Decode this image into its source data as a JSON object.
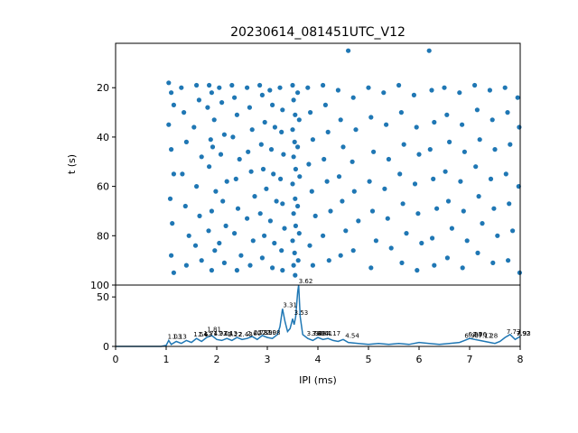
{
  "chart_data": [
    {
      "type": "scatter",
      "title": "20230614_081451UTC_V12",
      "ylabel": "t (s)",
      "xlim": [
        0,
        8
      ],
      "ylim": [
        100,
        2
      ],
      "y_inverted": true,
      "yticks": [
        20,
        40,
        60,
        80,
        100
      ],
      "marker_color": "#1f77b4",
      "note_points": "approximate sample of the dense raster",
      "points": [
        [
          1.05,
          18
        ],
        [
          1.1,
          22
        ],
        [
          1.15,
          27
        ],
        [
          1.05,
          35
        ],
        [
          1.1,
          45
        ],
        [
          1.15,
          55
        ],
        [
          1.08,
          65
        ],
        [
          1.12,
          75
        ],
        [
          1.1,
          88
        ],
        [
          1.15,
          95
        ],
        [
          1.3,
          20
        ],
        [
          1.35,
          30
        ],
        [
          1.4,
          42
        ],
        [
          1.32,
          55
        ],
        [
          1.38,
          68
        ],
        [
          1.45,
          80
        ],
        [
          1.4,
          92
        ],
        [
          1.6,
          19
        ],
        [
          1.65,
          25
        ],
        [
          1.55,
          36
        ],
        [
          1.7,
          48
        ],
        [
          1.6,
          60
        ],
        [
          1.66,
          72
        ],
        [
          1.58,
          84
        ],
        [
          1.7,
          90
        ],
        [
          1.85,
          19
        ],
        [
          1.9,
          22
        ],
        [
          1.82,
          28
        ],
        [
          1.95,
          33
        ],
        [
          1.88,
          41
        ],
        [
          1.92,
          44
        ],
        [
          1.85,
          52
        ],
        [
          1.98,
          62
        ],
        [
          1.9,
          70
        ],
        [
          1.84,
          78
        ],
        [
          1.96,
          86
        ],
        [
          1.9,
          94
        ],
        [
          2.05,
          20
        ],
        [
          2.1,
          26
        ],
        [
          2.15,
          39
        ],
        [
          2.08,
          47
        ],
        [
          2.2,
          58
        ],
        [
          2.12,
          66
        ],
        [
          2.18,
          76
        ],
        [
          2.05,
          83
        ],
        [
          2.15,
          91
        ],
        [
          2.3,
          19
        ],
        [
          2.35,
          24
        ],
        [
          2.4,
          31
        ],
        [
          2.32,
          40
        ],
        [
          2.45,
          49
        ],
        [
          2.38,
          57
        ],
        [
          2.42,
          69
        ],
        [
          2.35,
          79
        ],
        [
          2.48,
          88
        ],
        [
          2.4,
          94
        ],
        [
          2.6,
          20
        ],
        [
          2.65,
          28
        ],
        [
          2.7,
          37
        ],
        [
          2.62,
          46
        ],
        [
          2.68,
          54
        ],
        [
          2.75,
          64
        ],
        [
          2.6,
          73
        ],
        [
          2.72,
          82
        ],
        [
          2.66,
          92
        ],
        [
          2.85,
          19
        ],
        [
          2.9,
          23
        ],
        [
          2.95,
          34
        ],
        [
          2.88,
          43
        ],
        [
          2.92,
          53
        ],
        [
          2.98,
          61
        ],
        [
          2.86,
          71
        ],
        [
          2.94,
          80
        ],
        [
          2.9,
          89
        ],
        [
          3.05,
          21
        ],
        [
          3.1,
          27
        ],
        [
          3.15,
          36
        ],
        [
          3.08,
          45
        ],
        [
          3.12,
          55
        ],
        [
          3.18,
          66
        ],
        [
          3.06,
          74
        ],
        [
          3.14,
          83
        ],
        [
          3.1,
          93
        ],
        [
          3.25,
          20
        ],
        [
          3.3,
          29
        ],
        [
          3.28,
          38
        ],
        [
          3.32,
          47
        ],
        [
          3.26,
          57
        ],
        [
          3.3,
          67
        ],
        [
          3.34,
          77
        ],
        [
          3.28,
          86
        ],
        [
          3.3,
          94
        ],
        [
          3.5,
          19
        ],
        [
          3.52,
          25
        ],
        [
          3.55,
          31
        ],
        [
          3.5,
          37
        ],
        [
          3.54,
          42
        ],
        [
          3.52,
          48
        ],
        [
          3.56,
          53
        ],
        [
          3.5,
          59
        ],
        [
          3.55,
          65
        ],
        [
          3.52,
          71
        ],
        [
          3.56,
          76
        ],
        [
          3.5,
          82
        ],
        [
          3.54,
          87
        ],
        [
          3.52,
          92
        ],
        [
          3.55,
          96
        ],
        [
          3.6,
          22
        ],
        [
          3.63,
          33
        ],
        [
          3.6,
          44
        ],
        [
          3.64,
          56
        ],
        [
          3.6,
          68
        ],
        [
          3.63,
          79
        ],
        [
          3.61,
          90
        ],
        [
          3.8,
          20
        ],
        [
          3.85,
          30
        ],
        [
          3.9,
          41
        ],
        [
          3.82,
          51
        ],
        [
          3.88,
          62
        ],
        [
          3.95,
          72
        ],
        [
          3.84,
          84
        ],
        [
          3.9,
          92
        ],
        [
          4.1,
          19
        ],
        [
          4.15,
          27
        ],
        [
          4.2,
          38
        ],
        [
          4.12,
          49
        ],
        [
          4.18,
          58
        ],
        [
          4.25,
          70
        ],
        [
          4.1,
          80
        ],
        [
          4.22,
          90
        ],
        [
          4.4,
          21
        ],
        [
          4.45,
          33
        ],
        [
          4.5,
          44
        ],
        [
          4.42,
          56
        ],
        [
          4.48,
          66
        ],
        [
          4.55,
          78
        ],
        [
          4.45,
          88
        ],
        [
          4.6,
          5
        ],
        [
          4.7,
          24
        ],
        [
          4.75,
          37
        ],
        [
          4.68,
          50
        ],
        [
          4.72,
          62
        ],
        [
          4.8,
          74
        ],
        [
          4.7,
          86
        ],
        [
          5.0,
          20
        ],
        [
          5.05,
          32
        ],
        [
          5.1,
          46
        ],
        [
          5.02,
          58
        ],
        [
          5.08,
          70
        ],
        [
          5.15,
          82
        ],
        [
          5.05,
          93
        ],
        [
          5.3,
          22
        ],
        [
          5.35,
          35
        ],
        [
          5.4,
          49
        ],
        [
          5.32,
          61
        ],
        [
          5.38,
          73
        ],
        [
          5.45,
          85
        ],
        [
          5.6,
          19
        ],
        [
          5.65,
          30
        ],
        [
          5.7,
          43
        ],
        [
          5.62,
          55
        ],
        [
          5.68,
          67
        ],
        [
          5.75,
          79
        ],
        [
          5.66,
          91
        ],
        [
          5.9,
          23
        ],
        [
          5.95,
          36
        ],
        [
          6.0,
          47
        ],
        [
          5.92,
          59
        ],
        [
          5.98,
          71
        ],
        [
          6.05,
          83
        ],
        [
          5.96,
          94
        ],
        [
          6.2,
          5
        ],
        [
          6.25,
          21
        ],
        [
          6.3,
          34
        ],
        [
          6.22,
          45
        ],
        [
          6.28,
          57
        ],
        [
          6.35,
          69
        ],
        [
          6.26,
          81
        ],
        [
          6.3,
          92
        ],
        [
          6.5,
          20
        ],
        [
          6.55,
          31
        ],
        [
          6.6,
          42
        ],
        [
          6.52,
          54
        ],
        [
          6.58,
          66
        ],
        [
          6.65,
          77
        ],
        [
          6.56,
          89
        ],
        [
          6.8,
          22
        ],
        [
          6.85,
          35
        ],
        [
          6.9,
          46
        ],
        [
          6.82,
          58
        ],
        [
          6.88,
          70
        ],
        [
          6.95,
          82
        ],
        [
          6.86,
          93
        ],
        [
          7.1,
          19
        ],
        [
          7.15,
          29
        ],
        [
          7.2,
          41
        ],
        [
          7.12,
          52
        ],
        [
          7.18,
          64
        ],
        [
          7.25,
          75
        ],
        [
          7.16,
          87
        ],
        [
          7.4,
          21
        ],
        [
          7.45,
          33
        ],
        [
          7.5,
          45
        ],
        [
          7.42,
          57
        ],
        [
          7.48,
          69
        ],
        [
          7.55,
          80
        ],
        [
          7.46,
          91
        ],
        [
          7.7,
          20
        ],
        [
          7.75,
          30
        ],
        [
          7.8,
          43
        ],
        [
          7.72,
          55
        ],
        [
          7.78,
          67
        ],
        [
          7.85,
          78
        ],
        [
          7.76,
          90
        ],
        [
          7.95,
          24
        ],
        [
          7.98,
          36
        ],
        [
          7.97,
          60
        ],
        [
          7.99,
          95
        ]
      ]
    },
    {
      "type": "line",
      "xlabel": "IPI (ms)",
      "xlim": [
        0,
        8
      ],
      "ylim": [
        0,
        62
      ],
      "xticks": [
        0,
        1,
        2,
        3,
        4,
        5,
        6,
        7,
        8
      ],
      "yticks": [
        0,
        50
      ],
      "line_color": "#1f77b4",
      "x": [
        0,
        0.9,
        1.0,
        1.05,
        1.1,
        1.2,
        1.3,
        1.4,
        1.5,
        1.6,
        1.7,
        1.8,
        1.9,
        2.0,
        2.1,
        2.2,
        2.3,
        2.4,
        2.5,
        2.6,
        2.7,
        2.8,
        2.9,
        3.0,
        3.1,
        3.2,
        3.25,
        3.3,
        3.35,
        3.4,
        3.45,
        3.5,
        3.53,
        3.56,
        3.6,
        3.62,
        3.65,
        3.7,
        3.8,
        3.9,
        4.0,
        4.1,
        4.2,
        4.3,
        4.4,
        4.5,
        4.6,
        4.8,
        5.0,
        5.2,
        5.4,
        5.6,
        5.8,
        6.0,
        6.2,
        6.4,
        6.6,
        6.8,
        6.9,
        7.0,
        7.1,
        7.2,
        7.3,
        7.4,
        7.5,
        7.6,
        7.7,
        7.8,
        7.9,
        8.0
      ],
      "y": [
        0,
        0,
        1,
        6,
        2,
        5,
        3,
        6,
        4,
        8,
        5,
        9,
        11,
        7,
        6,
        8,
        6,
        9,
        7,
        8,
        10,
        7,
        11,
        9,
        8,
        12,
        20,
        38,
        25,
        15,
        18,
        28,
        22,
        30,
        55,
        62,
        30,
        12,
        8,
        6,
        9,
        7,
        8,
        6,
        5,
        7,
        4,
        3,
        2,
        3,
        2,
        3,
        2,
        4,
        3,
        2,
        3,
        4,
        6,
        8,
        7,
        6,
        5,
        4,
        3,
        5,
        9,
        12,
        7,
        10
      ],
      "peak_labels": [
        {
          "x": 1.03,
          "y": 6,
          "label": "1.03"
        },
        {
          "x": 1.13,
          "y": 6,
          "label": "1.13"
        },
        {
          "x": 1.54,
          "y": 8,
          "label": "1.54"
        },
        {
          "x": 1.63,
          "y": 8,
          "label": "1.63"
        },
        {
          "x": 1.74,
          "y": 9,
          "label": "1.74"
        },
        {
          "x": 1.81,
          "y": 13,
          "label": "1.81"
        },
        {
          "x": 1.93,
          "y": 9,
          "label": "1.93"
        },
        {
          "x": 2.04,
          "y": 9,
          "label": "2.04"
        },
        {
          "x": 2.13,
          "y": 9,
          "label": "2.13"
        },
        {
          "x": 2.22,
          "y": 8,
          "label": "2.22"
        },
        {
          "x": 2.43,
          "y": 8,
          "label": "2.43"
        },
        {
          "x": 2.6,
          "y": 9,
          "label": "2.60"
        },
        {
          "x": 2.73,
          "y": 10,
          "label": "2.73"
        },
        {
          "x": 2.81,
          "y": 10,
          "label": "2.81"
        },
        {
          "x": 2.9,
          "y": 10,
          "label": "2.90"
        },
        {
          "x": 2.98,
          "y": 10,
          "label": "2.98"
        },
        {
          "x": 3.31,
          "y": 38,
          "label": "3.31"
        },
        {
          "x": 3.53,
          "y": 30,
          "label": "3.53"
        },
        {
          "x": 3.62,
          "y": 62,
          "label": "3.62"
        },
        {
          "x": 3.78,
          "y": 9,
          "label": "3.78"
        },
        {
          "x": 3.88,
          "y": 9,
          "label": "3.88"
        },
        {
          "x": 3.94,
          "y": 9,
          "label": "3.94"
        },
        {
          "x": 4.01,
          "y": 9,
          "label": "4.01"
        },
        {
          "x": 4.17,
          "y": 9,
          "label": "4.17"
        },
        {
          "x": 4.54,
          "y": 7,
          "label": "4.54"
        },
        {
          "x": 6.9,
          "y": 7,
          "label": "6.90"
        },
        {
          "x": 6.97,
          "y": 8,
          "label": "6.97"
        },
        {
          "x": 7.06,
          "y": 8,
          "label": "7.06"
        },
        {
          "x": 7.17,
          "y": 7,
          "label": "7.17"
        },
        {
          "x": 7.28,
          "y": 7,
          "label": "7.28"
        },
        {
          "x": 7.73,
          "y": 11,
          "label": "7.73"
        },
        {
          "x": 7.92,
          "y": 9,
          "label": "7.92"
        },
        {
          "x": 7.93,
          "y": 9,
          "label": "7.93"
        }
      ]
    }
  ]
}
